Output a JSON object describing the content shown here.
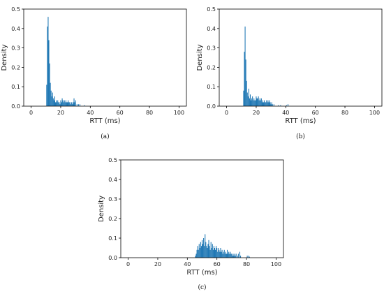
{
  "chart_data": [
    {
      "type": "bar",
      "caption": "(a)",
      "xlabel": "RTT (ms)",
      "ylabel": "Density",
      "xlim": [
        -5,
        105
      ],
      "ylim": [
        0,
        0.5
      ],
      "xticks": [
        "0",
        "20",
        "40",
        "60",
        "80",
        "100"
      ],
      "yticks": [
        "0.0",
        "0.1",
        "0.2",
        "0.3",
        "0.4",
        "0.5"
      ],
      "color": "#1f77b4",
      "grid": false,
      "bins": [
        {
          "x": 10.5,
          "y": 0.11
        },
        {
          "x": 11.0,
          "y": 0.41
        },
        {
          "x": 11.5,
          "y": 0.46
        },
        {
          "x": 12.0,
          "y": 0.34
        },
        {
          "x": 12.5,
          "y": 0.22
        },
        {
          "x": 13.0,
          "y": 0.12
        },
        {
          "x": 13.5,
          "y": 0.08
        },
        {
          "x": 14.0,
          "y": 0.05
        },
        {
          "x": 14.5,
          "y": 0.07
        },
        {
          "x": 15.0,
          "y": 0.04
        },
        {
          "x": 15.5,
          "y": 0.03
        },
        {
          "x": 16.0,
          "y": 0.05
        },
        {
          "x": 16.5,
          "y": 0.02
        },
        {
          "x": 17.0,
          "y": 0.03
        },
        {
          "x": 17.5,
          "y": 0.02
        },
        {
          "x": 18.0,
          "y": 0.03
        },
        {
          "x": 18.5,
          "y": 0.02
        },
        {
          "x": 19.0,
          "y": 0.02
        },
        {
          "x": 19.5,
          "y": 0.01
        },
        {
          "x": 20.0,
          "y": 0.03
        },
        {
          "x": 20.5,
          "y": 0.02
        },
        {
          "x": 21.0,
          "y": 0.04
        },
        {
          "x": 21.5,
          "y": 0.03
        },
        {
          "x": 22.0,
          "y": 0.02
        },
        {
          "x": 22.5,
          "y": 0.03
        },
        {
          "x": 23.0,
          "y": 0.02
        },
        {
          "x": 23.5,
          "y": 0.03
        },
        {
          "x": 24.0,
          "y": 0.02
        },
        {
          "x": 24.5,
          "y": 0.02
        },
        {
          "x": 25.0,
          "y": 0.03
        },
        {
          "x": 25.5,
          "y": 0.02
        },
        {
          "x": 26.0,
          "y": 0.02
        },
        {
          "x": 26.5,
          "y": 0.01
        },
        {
          "x": 27.0,
          "y": 0.02
        },
        {
          "x": 27.5,
          "y": 0.02
        },
        {
          "x": 28.0,
          "y": 0.01
        },
        {
          "x": 28.5,
          "y": 0.02
        },
        {
          "x": 29.0,
          "y": 0.04
        },
        {
          "x": 29.5,
          "y": 0.02
        },
        {
          "x": 30.0,
          "y": 0.03
        },
        {
          "x": 31.0,
          "y": 0.01
        },
        {
          "x": 32.0,
          "y": 0.01
        },
        {
          "x": 33.0,
          "y": 0.01
        },
        {
          "x": 36.0,
          "y": 0.005
        }
      ]
    },
    {
      "type": "bar",
      "caption": "(b)",
      "xlabel": "RTT (ms)",
      "ylabel": "Density",
      "xlim": [
        -5,
        105
      ],
      "ylim": [
        0,
        0.5
      ],
      "xticks": [
        "0",
        "20",
        "40",
        "60",
        "80",
        "100"
      ],
      "yticks": [
        "0.0",
        "0.1",
        "0.2",
        "0.3",
        "0.4",
        "0.5"
      ],
      "color": "#1f77b4",
      "grid": false,
      "bins": [
        {
          "x": 11.5,
          "y": 0.08
        },
        {
          "x": 12.0,
          "y": 0.28
        },
        {
          "x": 12.5,
          "y": 0.41
        },
        {
          "x": 13.0,
          "y": 0.24
        },
        {
          "x": 13.5,
          "y": 0.13
        },
        {
          "x": 14.0,
          "y": 0.07
        },
        {
          "x": 14.5,
          "y": 0.05
        },
        {
          "x": 15.0,
          "y": 0.09
        },
        {
          "x": 15.5,
          "y": 0.04
        },
        {
          "x": 16.0,
          "y": 0.06
        },
        {
          "x": 16.5,
          "y": 0.03
        },
        {
          "x": 17.0,
          "y": 0.04
        },
        {
          "x": 17.5,
          "y": 0.05
        },
        {
          "x": 18.0,
          "y": 0.03
        },
        {
          "x": 18.5,
          "y": 0.04
        },
        {
          "x": 19.0,
          "y": 0.03
        },
        {
          "x": 19.5,
          "y": 0.03
        },
        {
          "x": 20.0,
          "y": 0.05
        },
        {
          "x": 20.5,
          "y": 0.04
        },
        {
          "x": 21.0,
          "y": 0.04
        },
        {
          "x": 21.5,
          "y": 0.05
        },
        {
          "x": 22.0,
          "y": 0.03
        },
        {
          "x": 22.5,
          "y": 0.04
        },
        {
          "x": 23.0,
          "y": 0.03
        },
        {
          "x": 23.5,
          "y": 0.04
        },
        {
          "x": 24.0,
          "y": 0.02
        },
        {
          "x": 24.5,
          "y": 0.03
        },
        {
          "x": 25.0,
          "y": 0.02
        },
        {
          "x": 25.5,
          "y": 0.03
        },
        {
          "x": 26.0,
          "y": 0.02
        },
        {
          "x": 26.5,
          "y": 0.02
        },
        {
          "x": 27.0,
          "y": 0.03
        },
        {
          "x": 27.5,
          "y": 0.02
        },
        {
          "x": 28.0,
          "y": 0.03
        },
        {
          "x": 28.5,
          "y": 0.02
        },
        {
          "x": 29.0,
          "y": 0.03
        },
        {
          "x": 29.5,
          "y": 0.02
        },
        {
          "x": 30.0,
          "y": 0.01
        },
        {
          "x": 30.5,
          "y": 0.02
        },
        {
          "x": 31.0,
          "y": 0.01
        },
        {
          "x": 32.0,
          "y": 0.01
        },
        {
          "x": 35.0,
          "y": 0.005
        },
        {
          "x": 36.5,
          "y": 0.005
        },
        {
          "x": 40.5,
          "y": 0.005
        },
        {
          "x": 41.5,
          "y": 0.01
        }
      ]
    },
    {
      "type": "bar",
      "caption": "(c)",
      "xlabel": "RTT (ms)",
      "ylabel": "Density",
      "xlim": [
        -5,
        105
      ],
      "ylim": [
        0,
        0.5
      ],
      "xticks": [
        "0",
        "20",
        "40",
        "60",
        "80",
        "100"
      ],
      "yticks": [
        "0.0",
        "0.1",
        "0.2",
        "0.3",
        "0.4",
        "0.5"
      ],
      "color": "#1f77b4",
      "grid": false,
      "bins": [
        {
          "x": 45.5,
          "y": 0.01
        },
        {
          "x": 46.0,
          "y": 0.02
        },
        {
          "x": 46.5,
          "y": 0.04
        },
        {
          "x": 47.0,
          "y": 0.06
        },
        {
          "x": 47.5,
          "y": 0.04
        },
        {
          "x": 48.0,
          "y": 0.07
        },
        {
          "x": 48.5,
          "y": 0.05
        },
        {
          "x": 49.0,
          "y": 0.08
        },
        {
          "x": 49.5,
          "y": 0.06
        },
        {
          "x": 50.0,
          "y": 0.09
        },
        {
          "x": 50.5,
          "y": 0.07
        },
        {
          "x": 51.0,
          "y": 0.1
        },
        {
          "x": 51.5,
          "y": 0.06
        },
        {
          "x": 52.0,
          "y": 0.12
        },
        {
          "x": 52.5,
          "y": 0.08
        },
        {
          "x": 53.0,
          "y": 0.06
        },
        {
          "x": 53.5,
          "y": 0.05
        },
        {
          "x": 54.0,
          "y": 0.07
        },
        {
          "x": 54.5,
          "y": 0.09
        },
        {
          "x": 55.0,
          "y": 0.06
        },
        {
          "x": 55.5,
          "y": 0.04
        },
        {
          "x": 56.0,
          "y": 0.08
        },
        {
          "x": 56.5,
          "y": 0.05
        },
        {
          "x": 57.0,
          "y": 0.07
        },
        {
          "x": 57.5,
          "y": 0.04
        },
        {
          "x": 58.0,
          "y": 0.06
        },
        {
          "x": 58.5,
          "y": 0.05
        },
        {
          "x": 59.0,
          "y": 0.04
        },
        {
          "x": 59.5,
          "y": 0.06
        },
        {
          "x": 60.0,
          "y": 0.05
        },
        {
          "x": 60.5,
          "y": 0.03
        },
        {
          "x": 61.0,
          "y": 0.05
        },
        {
          "x": 61.5,
          "y": 0.04
        },
        {
          "x": 62.0,
          "y": 0.03
        },
        {
          "x": 62.5,
          "y": 0.05
        },
        {
          "x": 63.0,
          "y": 0.03
        },
        {
          "x": 63.5,
          "y": 0.04
        },
        {
          "x": 64.0,
          "y": 0.02
        },
        {
          "x": 64.5,
          "y": 0.03
        },
        {
          "x": 65.0,
          "y": 0.04
        },
        {
          "x": 65.5,
          "y": 0.02
        },
        {
          "x": 66.0,
          "y": 0.03
        },
        {
          "x": 66.5,
          "y": 0.02
        },
        {
          "x": 67.0,
          "y": 0.04
        },
        {
          "x": 67.5,
          "y": 0.02
        },
        {
          "x": 68.0,
          "y": 0.03
        },
        {
          "x": 68.5,
          "y": 0.02
        },
        {
          "x": 69.0,
          "y": 0.03
        },
        {
          "x": 69.5,
          "y": 0.02
        },
        {
          "x": 70.0,
          "y": 0.02
        },
        {
          "x": 70.5,
          "y": 0.01
        },
        {
          "x": 71.0,
          "y": 0.02
        },
        {
          "x": 71.5,
          "y": 0.01
        },
        {
          "x": 72.0,
          "y": 0.02
        },
        {
          "x": 72.5,
          "y": 0.01
        },
        {
          "x": 73.0,
          "y": 0.02
        },
        {
          "x": 74.0,
          "y": 0.01
        },
        {
          "x": 74.5,
          "y": 0.02
        },
        {
          "x": 75.5,
          "y": 0.03
        },
        {
          "x": 76.0,
          "y": 0.01
        },
        {
          "x": 80.5,
          "y": 0.01
        },
        {
          "x": 81.5,
          "y": 0.01
        },
        {
          "x": 82.0,
          "y": 0.005
        }
      ]
    }
  ]
}
